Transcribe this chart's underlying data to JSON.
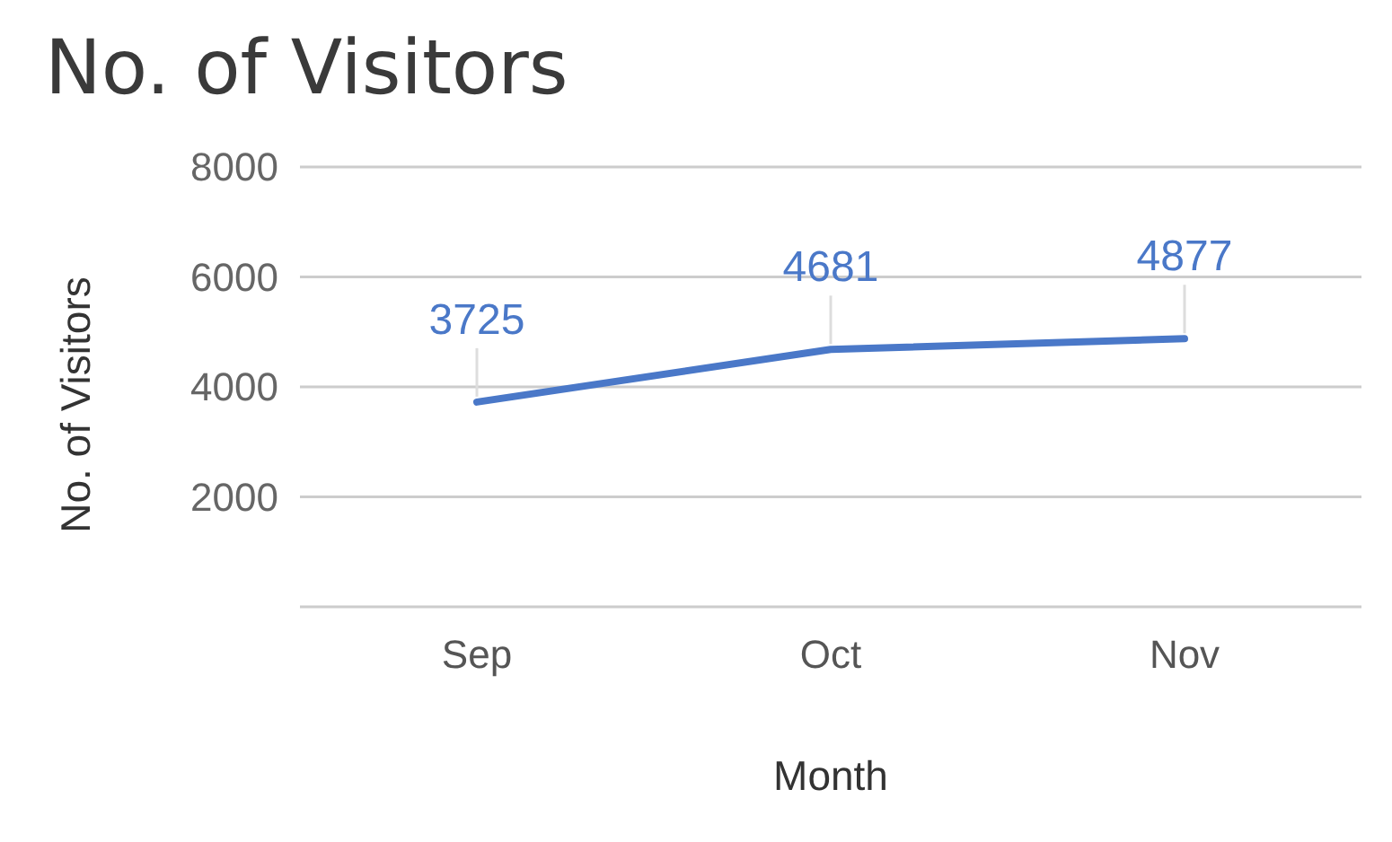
{
  "chart_data": {
    "type": "line",
    "title": "No. of Visitors",
    "xlabel": "Month",
    "ylabel": "No. of Visitors",
    "categories": [
      "Sep",
      "Oct",
      "Nov"
    ],
    "series": [
      {
        "color": "#4a78c8",
        "values": [
          3725,
          4681,
          4877
        ]
      }
    ],
    "ylim": [
      0,
      8000
    ],
    "yticks": [
      {
        "value": 0,
        "label": null
      },
      2000,
      4000,
      6000,
      8000
    ],
    "grid": "y",
    "data_labels": true,
    "marker": "none"
  }
}
